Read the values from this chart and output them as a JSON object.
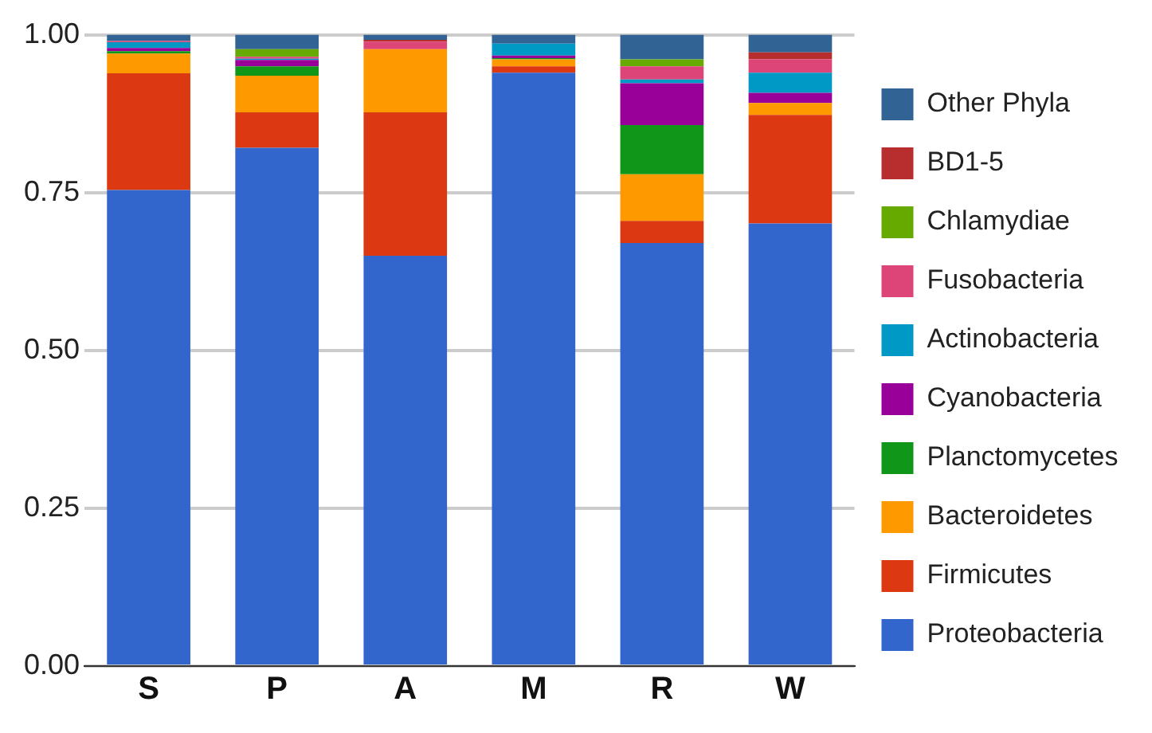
{
  "chart_data": {
    "type": "bar",
    "stacked": true,
    "categories": [
      "S",
      "P",
      "A",
      "M",
      "R",
      "W"
    ],
    "series": [
      {
        "name": "Proteobacteria",
        "color": "#3366cc",
        "values": [
          0.754,
          0.821,
          0.65,
          0.94,
          0.67,
          0.701
        ]
      },
      {
        "name": "Firmicutes",
        "color": "#dc3912",
        "values": [
          0.185,
          0.056,
          0.227,
          0.01,
          0.035,
          0.172
        ]
      },
      {
        "name": "Bacteroidetes",
        "color": "#ff9900",
        "values": [
          0.031,
          0.058,
          0.1,
          0.011,
          0.074,
          0.019
        ]
      },
      {
        "name": "Planctomycetes",
        "color": "#109618",
        "values": [
          0.004,
          0.015,
          0,
          0.002,
          0.078,
          0
        ]
      },
      {
        "name": "Cyanobacteria",
        "color": "#990099",
        "values": [
          0.005,
          0.01,
          0,
          0.004,
          0.066,
          0.016
        ]
      },
      {
        "name": "Actinobacteria",
        "color": "#0099c6",
        "values": [
          0.009,
          0.002,
          0,
          0.019,
          0.006,
          0.032
        ]
      },
      {
        "name": "Fusobacteria",
        "color": "#dd4477",
        "values": [
          0.002,
          0.003,
          0.012,
          0,
          0.021,
          0.021
        ]
      },
      {
        "name": "Chlamydiae",
        "color": "#66aa00",
        "values": [
          0,
          0.012,
          0,
          0,
          0.011,
          0
        ]
      },
      {
        "name": "BD1-5",
        "color": "#b82e2e",
        "values": [
          0,
          0,
          0.003,
          0,
          0,
          0.011
        ]
      },
      {
        "name": "Other Phyla",
        "color": "#316395",
        "values": [
          0.01,
          0.023,
          0.008,
          0.014,
          0.039,
          0.028
        ]
      }
    ],
    "ylim": [
      0,
      1
    ],
    "yticks": [
      {
        "value": 0,
        "label": "0.00"
      },
      {
        "value": 0.25,
        "label": "0.25"
      },
      {
        "value": 0.5,
        "label": "0.50"
      },
      {
        "value": 0.75,
        "label": "0.75"
      },
      {
        "value": 1,
        "label": "1.00"
      }
    ],
    "grid": "y",
    "legend": "right"
  }
}
